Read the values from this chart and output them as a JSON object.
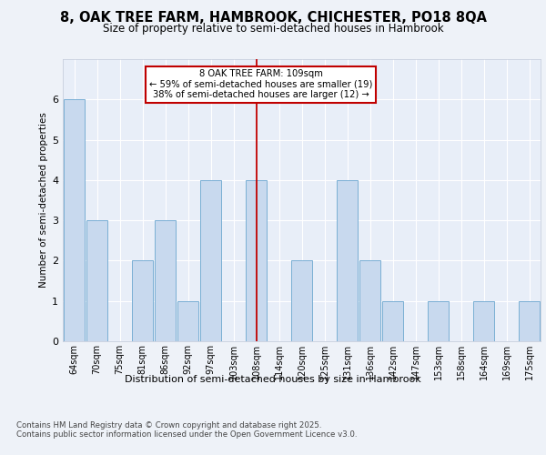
{
  "title1": "8, OAK TREE FARM, HAMBROOK, CHICHESTER, PO18 8QA",
  "title2": "Size of property relative to semi-detached houses in Hambrook",
  "xlabel": "Distribution of semi-detached houses by size in Hambrook",
  "ylabel": "Number of semi-detached properties",
  "categories": [
    "64sqm",
    "70sqm",
    "75sqm",
    "81sqm",
    "86sqm",
    "92sqm",
    "97sqm",
    "103sqm",
    "108sqm",
    "114sqm",
    "120sqm",
    "125sqm",
    "131sqm",
    "136sqm",
    "142sqm",
    "147sqm",
    "153sqm",
    "158sqm",
    "164sqm",
    "169sqm",
    "175sqm"
  ],
  "values": [
    6,
    3,
    0,
    2,
    3,
    1,
    4,
    0,
    4,
    0,
    2,
    0,
    4,
    2,
    1,
    0,
    1,
    0,
    1,
    0,
    1
  ],
  "bar_color": "#c8d9ee",
  "bar_edge_color": "#7aafd4",
  "highlight_index": 8,
  "highlight_line_color": "#c00000",
  "annotation_text": "8 OAK TREE FARM: 109sqm\n← 59% of semi-detached houses are smaller (19)\n38% of semi-detached houses are larger (12) →",
  "annotation_box_color": "#ffffff",
  "annotation_box_edge": "#c00000",
  "ylim": [
    0,
    7
  ],
  "yticks": [
    0,
    1,
    2,
    3,
    4,
    5,
    6
  ],
  "footer1": "Contains HM Land Registry data © Crown copyright and database right 2025.",
  "footer2": "Contains public sector information licensed under the Open Government Licence v3.0.",
  "bg_color": "#eef2f8",
  "plot_bg_color": "#e8eef8"
}
